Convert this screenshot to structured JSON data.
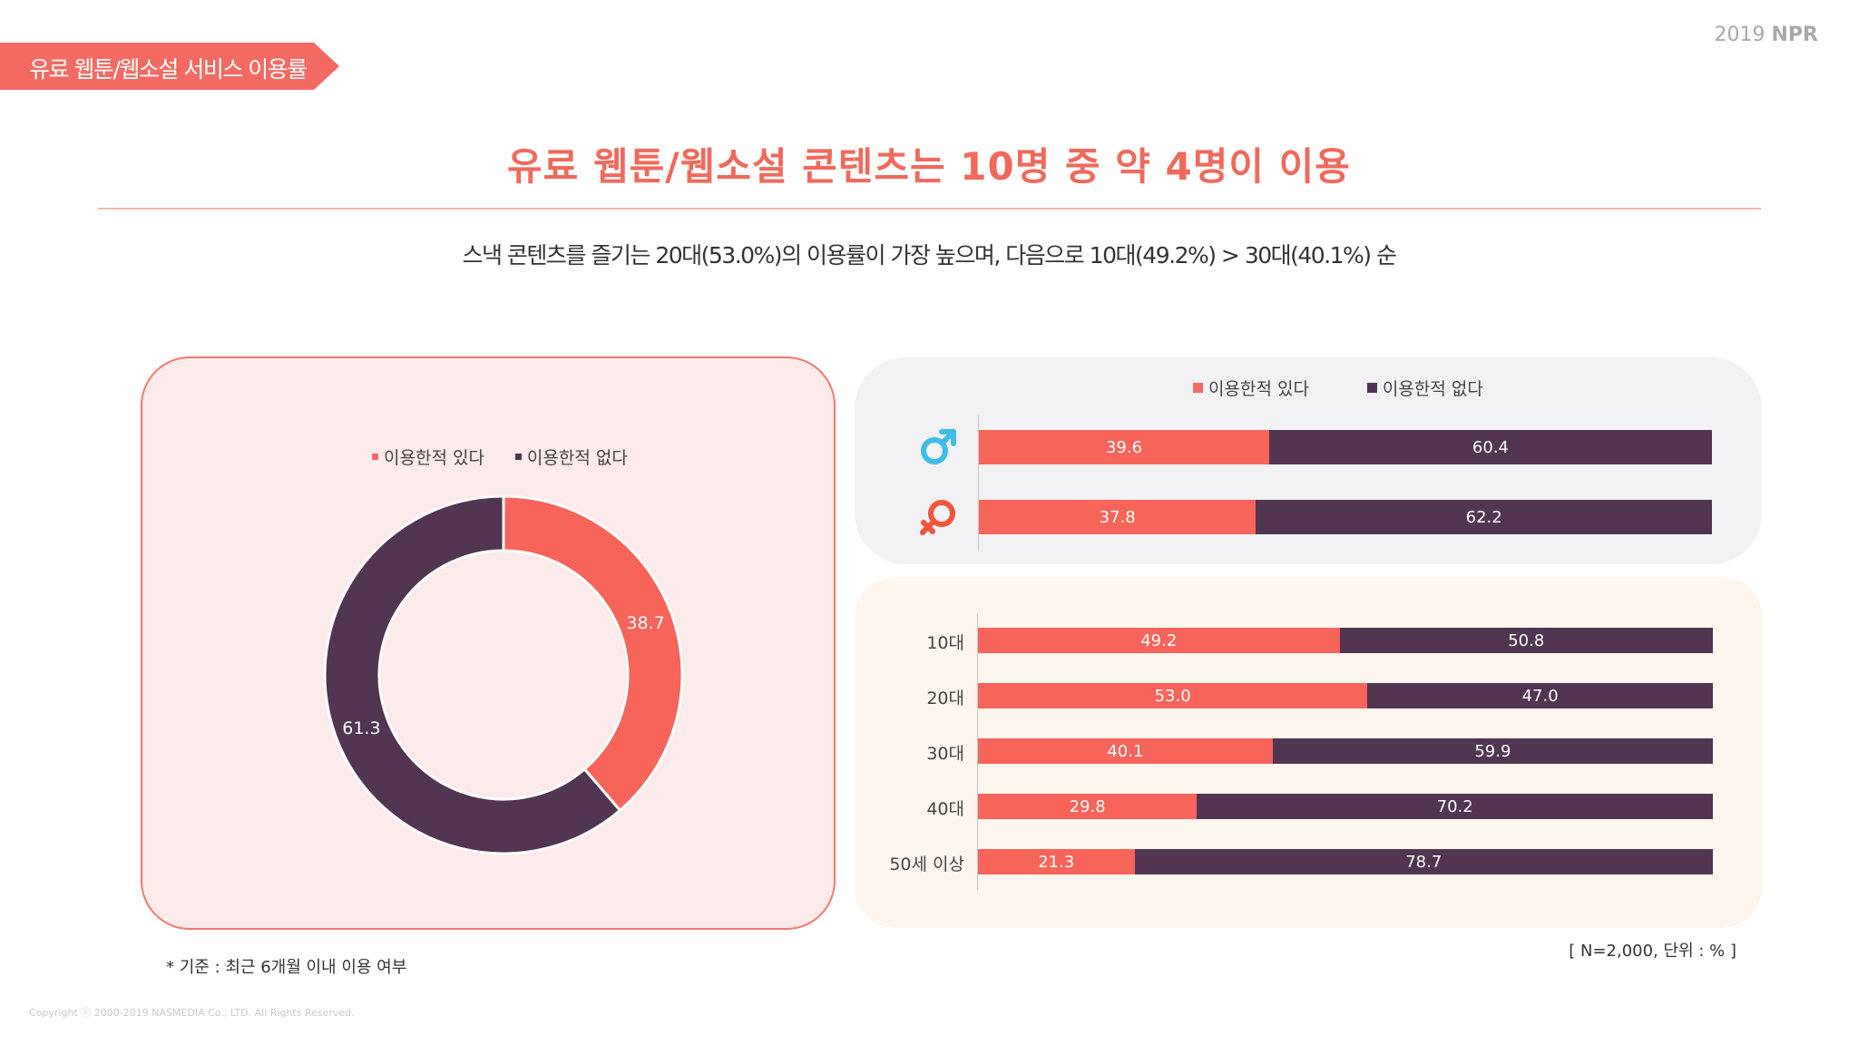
{
  "header": {
    "section_label": "유료 웹툰/웹소설 서비스 이용률",
    "brand_year": "2019",
    "brand_name": "NPR"
  },
  "headline": "유료 웹툰/웹소설 콘텐츠는 10명 중 약 4명이 이용",
  "subtitle": "스낵 콘텐츠를 즐기는 20대(53.0%)의 이용률이 가장 높으며, 다음으로 10대(49.2%) > 30대(40.1%) 순",
  "colors": {
    "used": "#f7645a",
    "not_used": "#513552",
    "accent": "#ef6a5c"
  },
  "icons": {
    "male": "male-symbol-icon",
    "female": "female-symbol-icon"
  },
  "legend": {
    "used": "이용한적 있다",
    "not_used": "이용한적 없다"
  },
  "chart_data": [
    {
      "type": "pie",
      "variant": "donut",
      "categories": [
        "이용한적 있다",
        "이용한적 없다"
      ],
      "values": [
        38.7,
        61.3
      ]
    },
    {
      "type": "bar",
      "orientation": "horizontal",
      "stacked": true,
      "categories": [
        "male-symbol-icon",
        "female-symbol-icon"
      ],
      "series": [
        {
          "name": "이용한적 있다",
          "values": [
            39.6,
            37.8
          ]
        },
        {
          "name": "이용한적 없다",
          "values": [
            60.4,
            62.2
          ]
        }
      ],
      "xlim": [
        0,
        100
      ]
    },
    {
      "type": "bar",
      "orientation": "horizontal",
      "stacked": true,
      "categories": [
        "10대",
        "20대",
        "30대",
        "40대",
        "50세 이상"
      ],
      "series": [
        {
          "name": "이용한적 있다",
          "values": [
            49.2,
            53.0,
            40.1,
            29.8,
            21.3
          ]
        },
        {
          "name": "이용한적 없다",
          "values": [
            50.8,
            47.0,
            59.9,
            70.2,
            78.7
          ]
        }
      ],
      "xlim": [
        0,
        100
      ]
    }
  ],
  "footer": {
    "note": "* 기준 : 최근 6개월 이내 이용 여부",
    "sample": "[ N=2,000, 단위 : % ]",
    "copyright": "Copyright ⓒ 2000-2019 NASMEDIA Co., LTD. All Rights Reserved."
  }
}
